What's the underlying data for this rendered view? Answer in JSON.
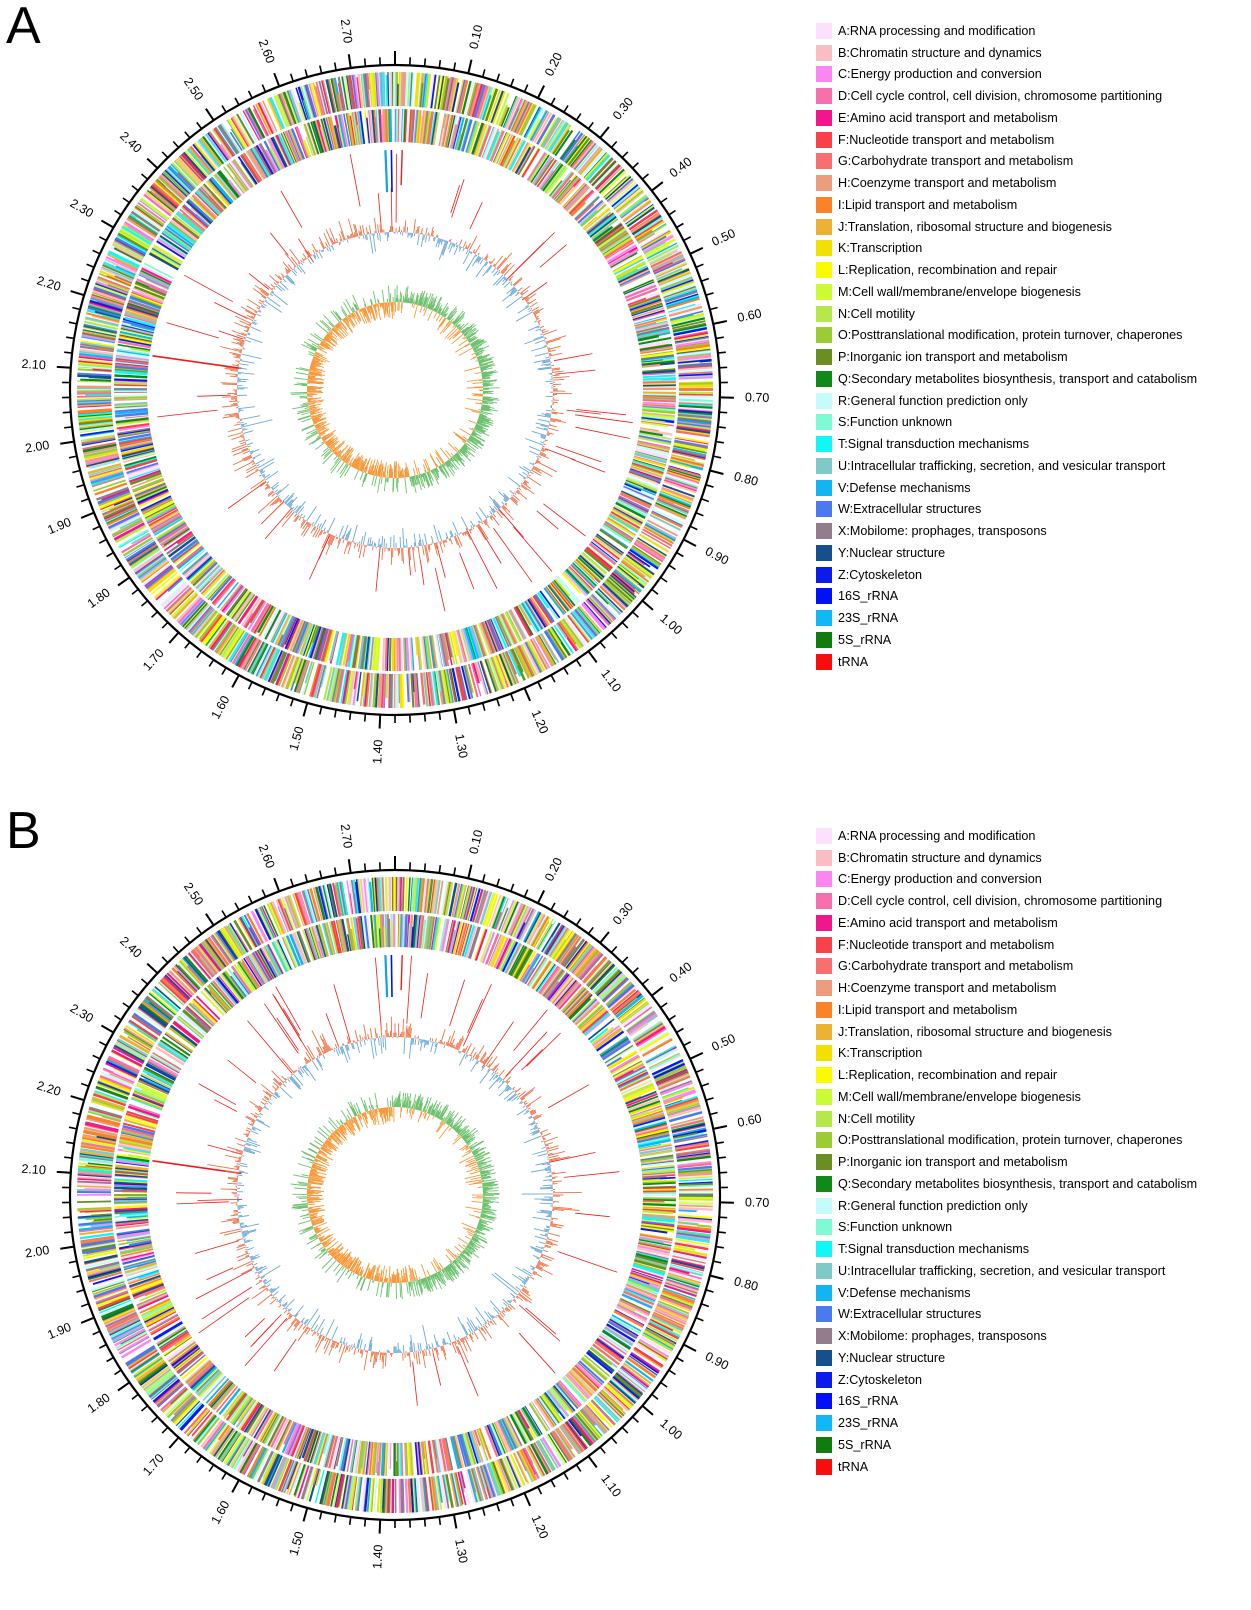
{
  "panels": [
    {
      "id": "A",
      "letter": "A"
    },
    {
      "id": "B",
      "letter": "B"
    }
  ],
  "axis": {
    "unit_note": "",
    "tick_labels": [
      "0.10",
      "0.20",
      "0.30",
      "0.40",
      "0.50",
      "0.60",
      "0.70",
      "0.80",
      "0.90",
      "1.00",
      "1.10",
      "1.20",
      "1.30",
      "1.40",
      "1.50",
      "1.60",
      "1.70",
      "1.80",
      "1.90",
      "2.00",
      "2.10",
      "2.20",
      "2.30",
      "2.40",
      "2.50",
      "2.60",
      "2.70"
    ],
    "max": 2.76
  },
  "legend": [
    {
      "label": "A:RNA processing and modification",
      "color": "#fde0fb"
    },
    {
      "label": "B:Chromatin structure and dynamics",
      "color": "#fbbdc4"
    },
    {
      "label": "C:Energy production and conversion",
      "color": "#fb86f2"
    },
    {
      "label": "D:Cell cycle control, cell division, chromosome partitioning",
      "color": "#f86fb0"
    },
    {
      "label": "E:Amino acid transport and metabolism",
      "color": "#f2168c"
    },
    {
      "label": "F:Nucleotide transport and metabolism",
      "color": "#fa4149"
    },
    {
      "label": "G:Carbohydrate transport and metabolism",
      "color": "#f96e6e"
    },
    {
      "label": "H:Coenzyme transport and metabolism",
      "color": "#ec9d7e"
    },
    {
      "label": "I:Lipid transport and metabolism",
      "color": "#fb8226"
    },
    {
      "label": "J:Translation, ribosomal structure and biogenesis",
      "color": "#ebb233"
    },
    {
      "label": "K:Transcription",
      "color": "#f2e100"
    },
    {
      "label": "L:Replication, recombination and repair",
      "color": "#fbfb00"
    },
    {
      "label": "M:Cell wall/membrane/envelope biogenesis",
      "color": "#ccfb33"
    },
    {
      "label": "N:Cell motility",
      "color": "#b6e84a"
    },
    {
      "label": "O:Posttranslational modification, protein turnover, chaperones",
      "color": "#9ccb33"
    },
    {
      "label": "P:Inorganic ion transport and metabolism",
      "color": "#6b8e23"
    },
    {
      "label": "Q:Secondary metabolites biosynthesis, transport and catabolism",
      "color": "#0f8a19"
    },
    {
      "label": "R:General function prediction only",
      "color": "#c6fbfb"
    },
    {
      "label": "S:Function unknown",
      "color": "#7efbd4"
    },
    {
      "label": "T:Signal transduction mechanisms",
      "color": "#11f7f7"
    },
    {
      "label": "U:Intracellular trafficking, secretion, and vesicular transport",
      "color": "#7fcac9"
    },
    {
      "label": "V:Defense mechanisms",
      "color": "#10b5f2"
    },
    {
      "label": "W:Extracellular structures",
      "color": "#4a79f0"
    },
    {
      "label": "X:Mobilome: prophages, transposons",
      "color": "#937c8b"
    },
    {
      "label": "Y:Nuclear structure",
      "color": "#15508c"
    },
    {
      "label": "Z:Cytoskeleton",
      "color": "#0b1bea"
    },
    {
      "label": "16S_rRNA",
      "color": "#0010f8"
    },
    {
      "label": "23S_rRNA",
      "color": "#10b8f6"
    },
    {
      "label": "5S_rRNA",
      "color": "#0e7d0e"
    },
    {
      "label": "tRNA",
      "color": "#f80d0d"
    }
  ],
  "track_colors": {
    "gc_content_positive": "#f07145",
    "gc_content_negative": "#6aa9d9",
    "gc_skew_positive": "#6dc26e",
    "gc_skew_negative": "#f89a3c",
    "rna": "#f01c1c",
    "rrna": "#0ea2e6"
  }
}
